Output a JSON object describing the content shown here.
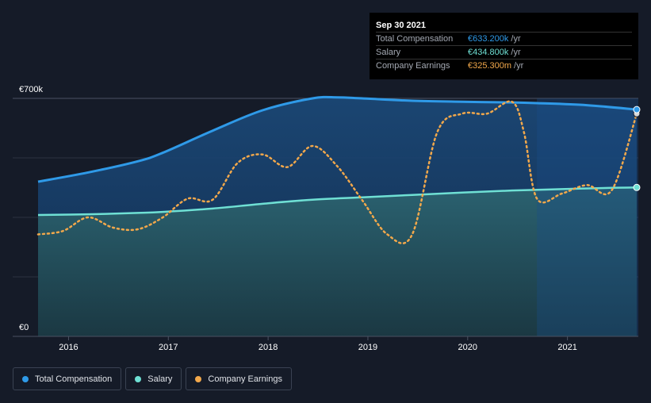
{
  "chart_data": {
    "type": "area",
    "title": "",
    "xlabel": "",
    "ylabel": "",
    "ylim": [
      0,
      700000
    ],
    "y_tick_labels": [
      "€700k",
      "€0"
    ],
    "x_ticks": [
      {
        "label": "2016",
        "x": 2016.0
      },
      {
        "label": "2017",
        "x": 2017.0
      },
      {
        "label": "2018",
        "x": 2018.0
      },
      {
        "label": "2019",
        "x": 2019.0
      },
      {
        "label": "2020",
        "x": 2020.0
      },
      {
        "label": "2021",
        "x": 2021.0
      }
    ],
    "xlim": [
      2015.73,
      2021.75
    ],
    "forecast_shade_start": 2020.75,
    "grid": true,
    "legend_position": "bottom-left",
    "series": [
      {
        "name": "Total Compensation",
        "color": "#2f9ae8",
        "x": [
          2015.75,
          2016.25,
          2016.75,
          2017.0,
          2017.5,
          2018.0,
          2018.5,
          2018.75,
          2019.0,
          2019.5,
          2020.0,
          2020.5,
          2020.75,
          2021.25,
          2021.75
        ],
        "values": [
          455000,
          482000,
          515000,
          540000,
          605000,
          665000,
          700000,
          703000,
          700000,
          693000,
          690000,
          688000,
          686000,
          680000,
          667000
        ]
      },
      {
        "name": "Salary",
        "color": "#6fe0d4",
        "x": [
          2015.75,
          2016.25,
          2016.75,
          2017.0,
          2017.5,
          2018.0,
          2018.5,
          2019.0,
          2019.5,
          2020.0,
          2020.5,
          2021.0,
          2021.5,
          2021.75
        ],
        "values": [
          357000,
          359000,
          363000,
          366000,
          376000,
          390000,
          402000,
          409000,
          416000,
          423000,
          429000,
          433000,
          437000,
          438000
        ]
      },
      {
        "name": "Company Earnings",
        "color": "#f2a84b",
        "scale_note": "secondary",
        "x": [
          2015.75,
          2016.0,
          2016.25,
          2016.5,
          2016.75,
          2017.0,
          2017.25,
          2017.5,
          2017.75,
          2018.0,
          2018.25,
          2018.5,
          2018.75,
          2019.0,
          2019.25,
          2019.5,
          2019.75,
          2020.0,
          2020.25,
          2020.5,
          2020.62,
          2020.75,
          2021.0,
          2021.25,
          2021.5,
          2021.75
        ],
        "values": [
          300000,
          310000,
          350000,
          320000,
          315000,
          350000,
          405000,
          402000,
          510000,
          535000,
          498000,
          560000,
          500000,
          400000,
          300000,
          300000,
          600000,
          655000,
          655000,
          690000,
          600000,
          405000,
          420000,
          445000,
          430000,
          655000
        ]
      }
    ]
  },
  "tooltip": {
    "date": "Sep 30 2021",
    "rows": [
      {
        "label": "Total Compensation",
        "value": "€633.200k",
        "unit": "/yr",
        "color": "#2f9ae8"
      },
      {
        "label": "Salary",
        "value": "€434.800k",
        "unit": "/yr",
        "color": "#6fe0d4"
      },
      {
        "label": "Company Earnings",
        "value": "€325.300m",
        "unit": "/yr",
        "color": "#f2a84b"
      }
    ]
  },
  "legend": [
    {
      "label": "Total Compensation",
      "color": "#2f9ae8"
    },
    {
      "label": "Salary",
      "color": "#6fe0d4"
    },
    {
      "label": "Company Earnings",
      "color": "#f2a84b"
    }
  ]
}
